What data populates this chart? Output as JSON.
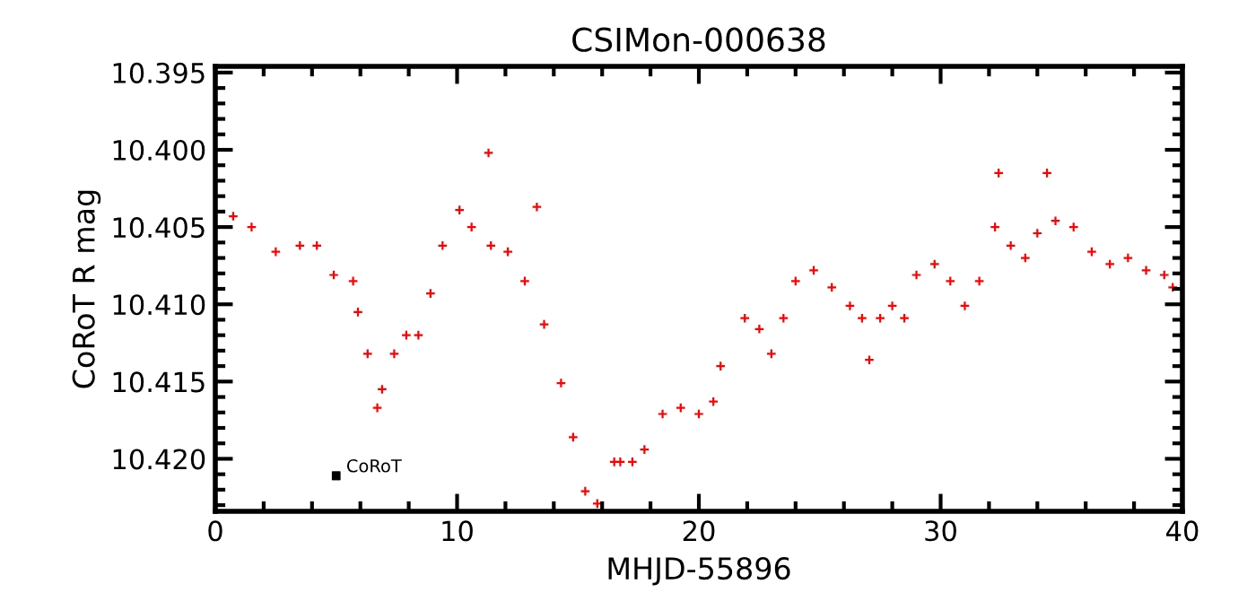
{
  "chart_data": {
    "type": "scatter",
    "title": "CSIMon-000638",
    "xlabel": "MHJD-55896",
    "ylabel": "CoRoT R mag",
    "marker": "cross",
    "grid": false,
    "legend": false,
    "xlim": [
      0,
      40
    ],
    "xticks": [
      0,
      10,
      20,
      30,
      40
    ],
    "ylim": [
      10.4234,
      10.3946
    ],
    "yticks": [
      {
        "value": 10.395,
        "label": "10.395"
      },
      {
        "value": 10.4,
        "label": "10.400"
      },
      {
        "value": 10.405,
        "label": "10.405"
      },
      {
        "value": 10.41,
        "label": "10.410"
      },
      {
        "value": 10.415,
        "label": "10.415"
      },
      {
        "value": 10.42,
        "label": "10.420"
      }
    ],
    "series": [
      {
        "color": "#ff0000",
        "x": [
          0.74,
          1.5,
          2.5,
          3.5,
          4.2,
          4.9,
          5.7,
          5.9,
          6.3,
          6.7,
          6.9,
          7.4,
          7.9,
          8.4,
          8.9,
          9.4,
          10.1,
          10.6,
          11.3,
          11.4,
          12.1,
          12.8,
          13.3,
          13.6,
          14.3,
          14.8,
          15.3,
          15.8,
          16.5,
          16.75,
          17.25,
          17.75,
          18.5,
          19.25,
          20.0,
          20.6,
          20.9,
          21.9,
          22.5,
          23.0,
          23.5,
          24.0,
          24.75,
          25.5,
          26.25,
          26.75,
          27.05,
          27.5,
          28.0,
          28.5,
          29.0,
          29.75,
          30.4,
          31.0,
          31.6,
          32.25,
          32.4,
          32.9,
          33.5,
          34.0,
          34.4,
          34.75,
          35.5,
          36.25,
          37.0,
          37.75,
          38.5,
          39.25,
          39.6
        ],
        "values": [
          10.4043,
          10.405,
          10.4066,
          10.4062,
          10.4062,
          10.4081,
          10.4085,
          10.4105,
          10.4132,
          10.4167,
          10.4155,
          10.4132,
          10.412,
          10.412,
          10.4093,
          10.4062,
          10.4039,
          10.405,
          10.4002,
          10.4062,
          10.4066,
          10.4085,
          10.4037,
          10.4113,
          10.4151,
          10.4186,
          10.4221,
          10.4229,
          10.4202,
          10.4202,
          10.4202,
          10.4194,
          10.4171,
          10.4167,
          10.4171,
          10.4163,
          10.414,
          10.4109,
          10.4116,
          10.4132,
          10.4109,
          10.4085,
          10.4078,
          10.4089,
          10.4101,
          10.4109,
          10.4136,
          10.4109,
          10.4101,
          10.4109,
          10.4081,
          10.4074,
          10.4085,
          10.4101,
          10.4085,
          10.405,
          10.4015,
          10.4062,
          10.407,
          10.4054,
          10.4015,
          10.4046,
          10.405,
          10.4066,
          10.4074,
          10.407,
          10.4078,
          10.4081,
          10.4089
        ]
      },
      {
        "color": "#000000",
        "marker": "square",
        "x": [
          5.0
        ],
        "values": [
          10.4211
        ],
        "errors": [
          0.0002
        ]
      }
    ],
    "annotations": [
      {
        "text": "CoRoT",
        "x": 5.0,
        "y": 10.4211
      }
    ]
  }
}
